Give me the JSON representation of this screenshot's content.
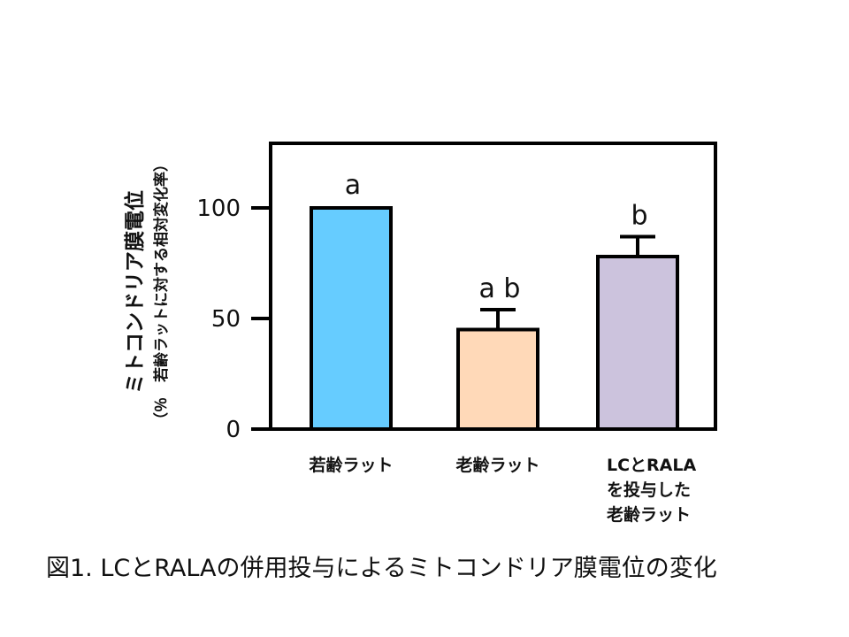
{
  "caption": "図1.  LCとRALAの併用投与によるミトコンドリア膜電位の変化",
  "chart_data": {
    "type": "bar",
    "categories": [
      [
        "若齢ラット"
      ],
      [
        "老齢ラット"
      ],
      [
        "LCとRALA",
        "を投与した",
        "老齢ラット"
      ]
    ],
    "values": [
      100,
      45,
      78
    ],
    "error": [
      0,
      9,
      9
    ],
    "significance": [
      "a",
      "a b",
      "b"
    ],
    "colors": [
      "#66ccff",
      "#ffd9b8",
      "#ccc3dd"
    ],
    "ylim": [
      0,
      130
    ],
    "yticks": [
      0,
      50,
      100
    ],
    "ylabel": "ミトコンドリア膜電位",
    "ylabel_sub": "（％　若齢ラットに対する相対変化率）"
  }
}
